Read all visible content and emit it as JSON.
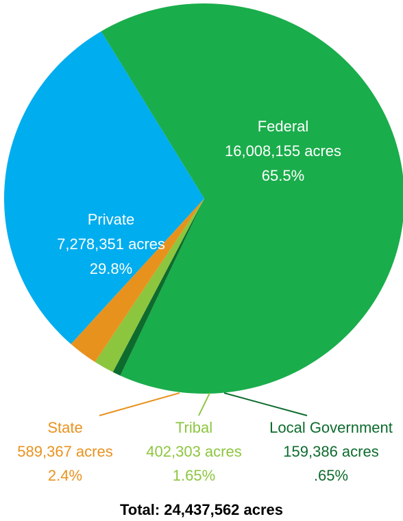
{
  "chart_data": {
    "type": "pie",
    "unit": "acres",
    "slices": [
      {
        "name": "Federal",
        "value": 16008155,
        "value_label": "16,008,155 acres",
        "percent_label": "65.5%",
        "color": "#1aad4b"
      },
      {
        "name": "Local Government",
        "value": 159386,
        "value_label": "159,386 acres",
        "percent_label": ".65%",
        "color": "#0d6b2d"
      },
      {
        "name": "Tribal",
        "value": 402303,
        "value_label": "402,303 acres",
        "percent_label": "1.65%",
        "color": "#8cc63f"
      },
      {
        "name": "State",
        "value": 589367,
        "value_label": "589,367 acres",
        "percent_label": "2.4%",
        "color": "#e8921e"
      },
      {
        "name": "Private",
        "value": 7278351,
        "value_label": "7,278,351 acres",
        "percent_label": "29.8%",
        "color": "#00adee"
      }
    ],
    "total_label": "Total: 24,437,562 acres"
  }
}
